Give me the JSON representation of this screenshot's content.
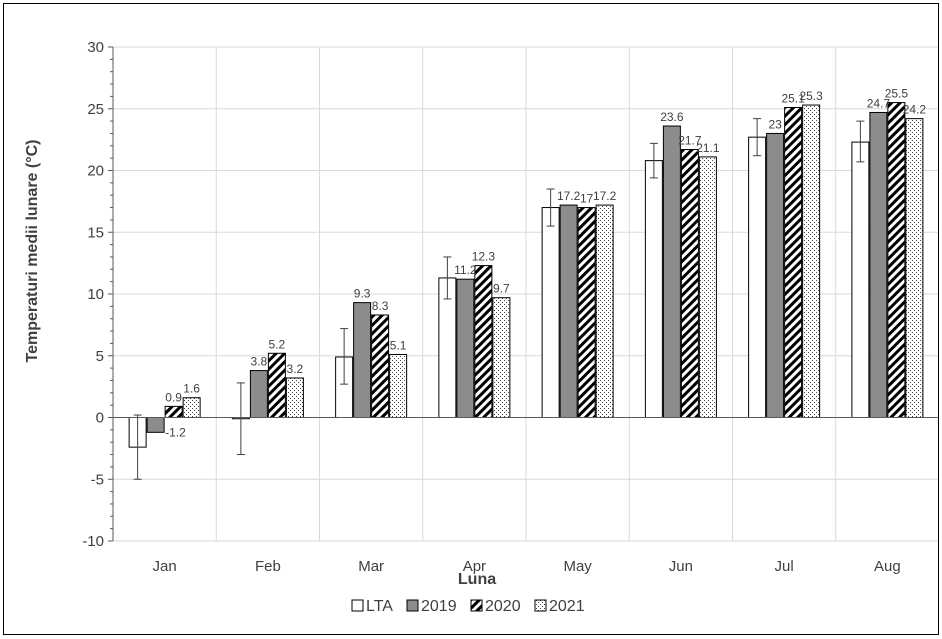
{
  "chart_data": {
    "type": "bar",
    "title": "",
    "xlabel": "Luna",
    "ylabel": "Temperaturi medii lunare (°C)",
    "ylim": [
      -10,
      30
    ],
    "yticks": [
      -10,
      -5,
      0,
      5,
      10,
      15,
      20,
      25,
      30
    ],
    "ytick_labels": [
      "-10",
      "-5",
      "0",
      "5",
      "10",
      "15",
      "20",
      "25",
      "30"
    ],
    "grid": true,
    "legend_position": "bottom",
    "categories": [
      "Jan",
      "Feb",
      "Mar",
      "Apr",
      "May",
      "Jun",
      "Jul",
      "Aug"
    ],
    "series": [
      {
        "name": "LTA",
        "pattern": "white",
        "values": [
          -2.4,
          -0.1,
          4.9,
          11.3,
          17.0,
          20.8,
          22.7,
          22.3
        ],
        "error_low": [
          -5.0,
          -3.0,
          2.7,
          9.6,
          15.5,
          19.4,
          21.2,
          20.7
        ],
        "error_high": [
          0.2,
          2.8,
          7.2,
          13.0,
          18.5,
          22.2,
          24.2,
          24.0
        ],
        "labels": [
          "",
          "",
          "",
          "",
          "",
          "",
          "",
          ""
        ]
      },
      {
        "name": "2019",
        "pattern": "gray",
        "values": [
          -1.2,
          3.8,
          9.3,
          11.2,
          17.2,
          23.6,
          23.0,
          24.7
        ],
        "labels": [
          "-1.2",
          "3.8",
          "9.3",
          "11.2",
          "17.2",
          "23.6",
          "23",
          "24.7"
        ]
      },
      {
        "name": "2020",
        "pattern": "diagonal",
        "values": [
          0.9,
          5.2,
          8.3,
          12.3,
          17.0,
          21.7,
          25.1,
          25.5
        ],
        "labels": [
          "0.9",
          "5.2",
          "8.3",
          "12.3",
          "17",
          "21.7",
          "25.1",
          "25.5"
        ]
      },
      {
        "name": "2021",
        "pattern": "dotted",
        "values": [
          1.6,
          3.2,
          5.1,
          9.7,
          17.2,
          21.1,
          25.3,
          24.2
        ],
        "labels": [
          "1.6",
          "3.2",
          "5.1",
          "9.7",
          "17.2",
          "21.1",
          "25.3",
          "24.2"
        ]
      }
    ]
  },
  "colors": {
    "gray_fill": "#8c8c8c",
    "grid": "#d9d9d9",
    "axis": "#595959",
    "text": "#404040"
  }
}
